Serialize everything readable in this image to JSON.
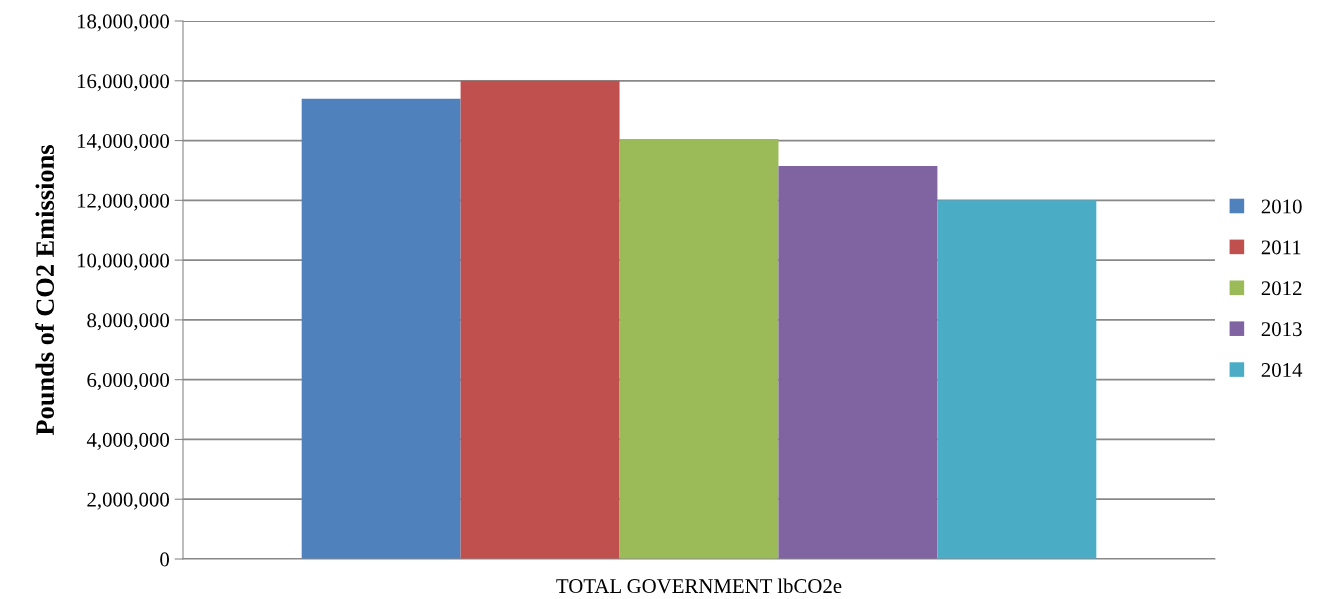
{
  "chart_data": {
    "type": "bar",
    "ylabel": "Pounds of CO2 Emissions",
    "categories": [
      "TOTAL GOVERNMENT lbCO2e"
    ],
    "series": [
      {
        "name": "2010",
        "color": "#4f81bd",
        "values": [
          15400000
        ]
      },
      {
        "name": "2011",
        "color": "#c0504d",
        "values": [
          16000000
        ]
      },
      {
        "name": "2012",
        "color": "#9bbb59",
        "values": [
          14050000
        ]
      },
      {
        "name": "2013",
        "color": "#8064a2",
        "values": [
          13150000
        ]
      },
      {
        "name": "2014",
        "color": "#4bacc6",
        "values": [
          12000000
        ]
      }
    ],
    "ylim": [
      0,
      18000000
    ],
    "yticks": [
      {
        "value": 0,
        "label": "0"
      },
      {
        "value": 2000000,
        "label": "2,000,000"
      },
      {
        "value": 4000000,
        "label": "4,000,000"
      },
      {
        "value": 6000000,
        "label": "6,000,000"
      },
      {
        "value": 8000000,
        "label": "8,000,000"
      },
      {
        "value": 10000000,
        "label": "10,000,000"
      },
      {
        "value": 12000000,
        "label": "12,000,000"
      },
      {
        "value": 14000000,
        "label": "14,000,000"
      },
      {
        "value": 16000000,
        "label": "16,000,000"
      },
      {
        "value": 18000000,
        "label": "18,000,000"
      }
    ],
    "grid": "y",
    "legend": "right"
  }
}
